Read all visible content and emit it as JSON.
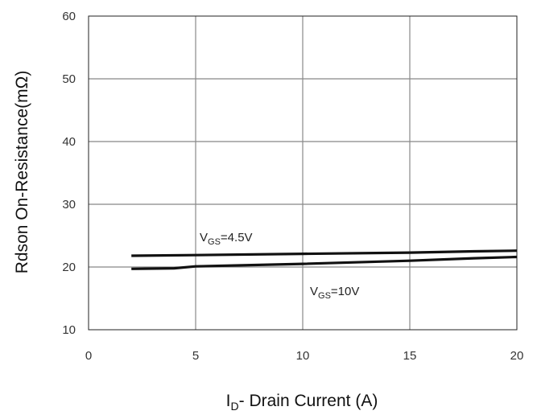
{
  "chart_data": {
    "type": "line",
    "xlabel": {
      "main": "I",
      "sub": "D",
      "rest": "- Drain Current (A)"
    },
    "ylabel": "Rdson On-Resistance(mΩ)",
    "xlim": [
      0,
      20
    ],
    "ylim": [
      10,
      60
    ],
    "xticks": [
      "0",
      "5",
      "10",
      "15",
      "20"
    ],
    "yticks": [
      "10",
      "20",
      "30",
      "40",
      "50",
      "60"
    ],
    "grid": true,
    "series": [
      {
        "label": {
          "main": "V",
          "sub": "GS",
          "rest": "=4.5V"
        },
        "points": [
          [
            2,
            21.8
          ],
          [
            5,
            21.9
          ],
          [
            10,
            22.1
          ],
          [
            15,
            22.3
          ],
          [
            18,
            22.5
          ],
          [
            20,
            22.6
          ]
        ]
      },
      {
        "label": {
          "main": "V",
          "sub": "GS",
          "rest": "=10V"
        },
        "points": [
          [
            2,
            19.7
          ],
          [
            4,
            19.8
          ],
          [
            5,
            20.1
          ],
          [
            10,
            20.5
          ],
          [
            15,
            21.0
          ],
          [
            18,
            21.4
          ],
          [
            20,
            21.6
          ]
        ]
      }
    ]
  },
  "colors": {
    "grid": "#888888",
    "series": "#111111",
    "frame": "#222222"
  }
}
